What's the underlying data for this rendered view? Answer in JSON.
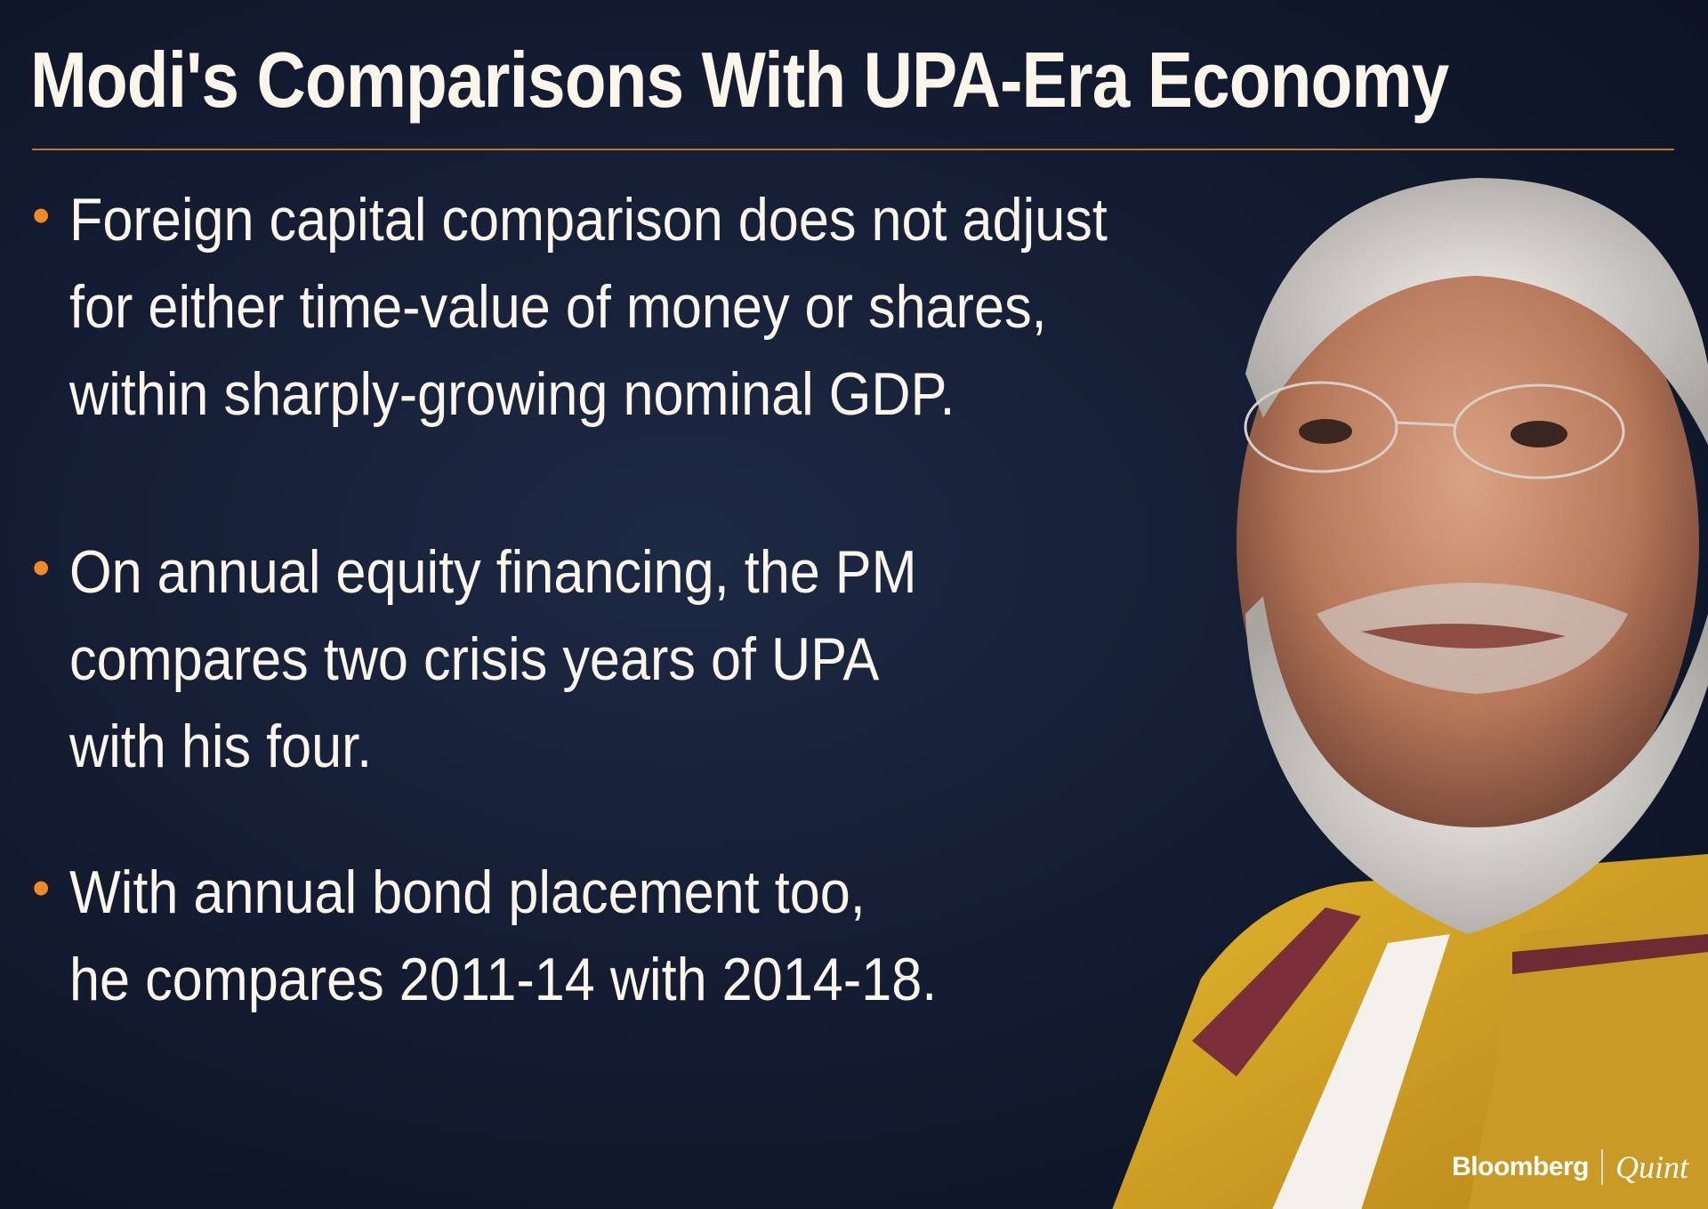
{
  "header": {
    "title": "Modi's Comparisons With UPA-Era Economy"
  },
  "bullets": [
    {
      "lines": [
        "Foreign capital comparison does not adjust",
        "for either time-value of money or shares,",
        "within sharply-growing nominal GDP."
      ]
    },
    {
      "lines": [
        "On annual equity financing, the PM",
        "compares two crisis years of UPA",
        "with his four."
      ]
    },
    {
      "lines": [
        "With annual bond placement too,",
        "he compares 2011-14 with 2014-18."
      ]
    }
  ],
  "bullet_marker": "•",
  "brand": {
    "name": "Bloomberg",
    "sub": "Quint"
  },
  "colors": {
    "background": "#141d33",
    "accent": "#f08a24",
    "text": "#fbf5ea"
  }
}
